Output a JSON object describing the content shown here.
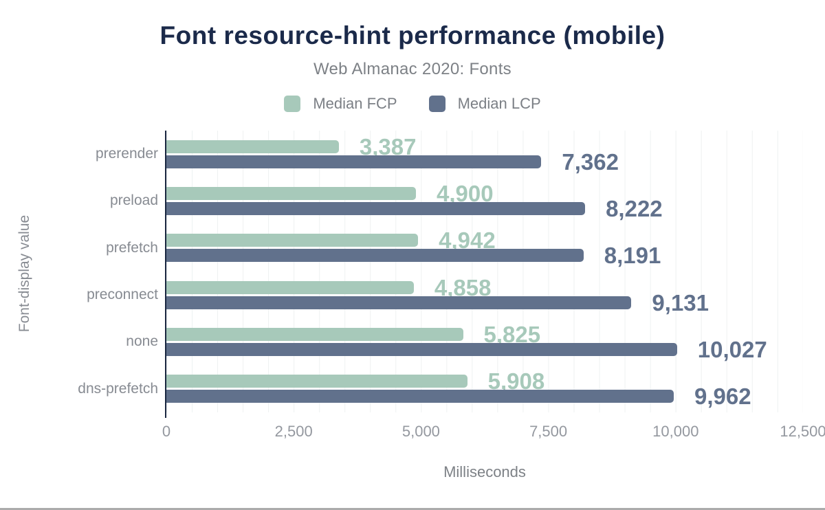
{
  "chart_data": {
    "type": "bar",
    "orientation": "horizontal",
    "title": "Font resource-hint performance (mobile)",
    "subtitle": "Web Almanac 2020: Fonts",
    "xlabel": "Milliseconds",
    "ylabel": "Font-display value",
    "xlim": [
      0,
      12500
    ],
    "x_tick_values": [
      0,
      2500,
      5000,
      7500,
      10000,
      12500
    ],
    "x_tick_labels": [
      "0",
      "2,500",
      "5,000",
      "7,500",
      "10,000",
      "12,500"
    ],
    "gridlines": {
      "axis": "x",
      "interval": 500,
      "color": "#eef1f1"
    },
    "legend_position": "top",
    "categories": [
      "prerender",
      "preload",
      "prefetch",
      "preconnect",
      "none",
      "dns-prefetch"
    ],
    "series": [
      {
        "name": "Median FCP",
        "color": "#a7c9ba",
        "values": [
          3387,
          4900,
          4942,
          4858,
          5825,
          5908
        ],
        "labels": [
          "3,387",
          "4,900",
          "4,942",
          "4,858",
          "5,825",
          "5,908"
        ]
      },
      {
        "name": "Median LCP",
        "color": "#61718c",
        "values": [
          7362,
          8222,
          8191,
          9131,
          10027,
          9962
        ],
        "labels": [
          "7,362",
          "8,222",
          "8,191",
          "9,131",
          "10,027",
          "9,962"
        ]
      }
    ]
  },
  "colors": {
    "background": "#ffffff",
    "title": "#1b2a4a",
    "subtitle": "#7d8186",
    "legend_text": "#7b7f85",
    "category_label": "#878b92",
    "tick_label": "#94989f",
    "axis_line": "#1a2740",
    "gridline": "#eef1f1",
    "fcp_series": "#a7c9ba",
    "lcp_series": "#61718c",
    "bottom_rule": "#ababab"
  }
}
